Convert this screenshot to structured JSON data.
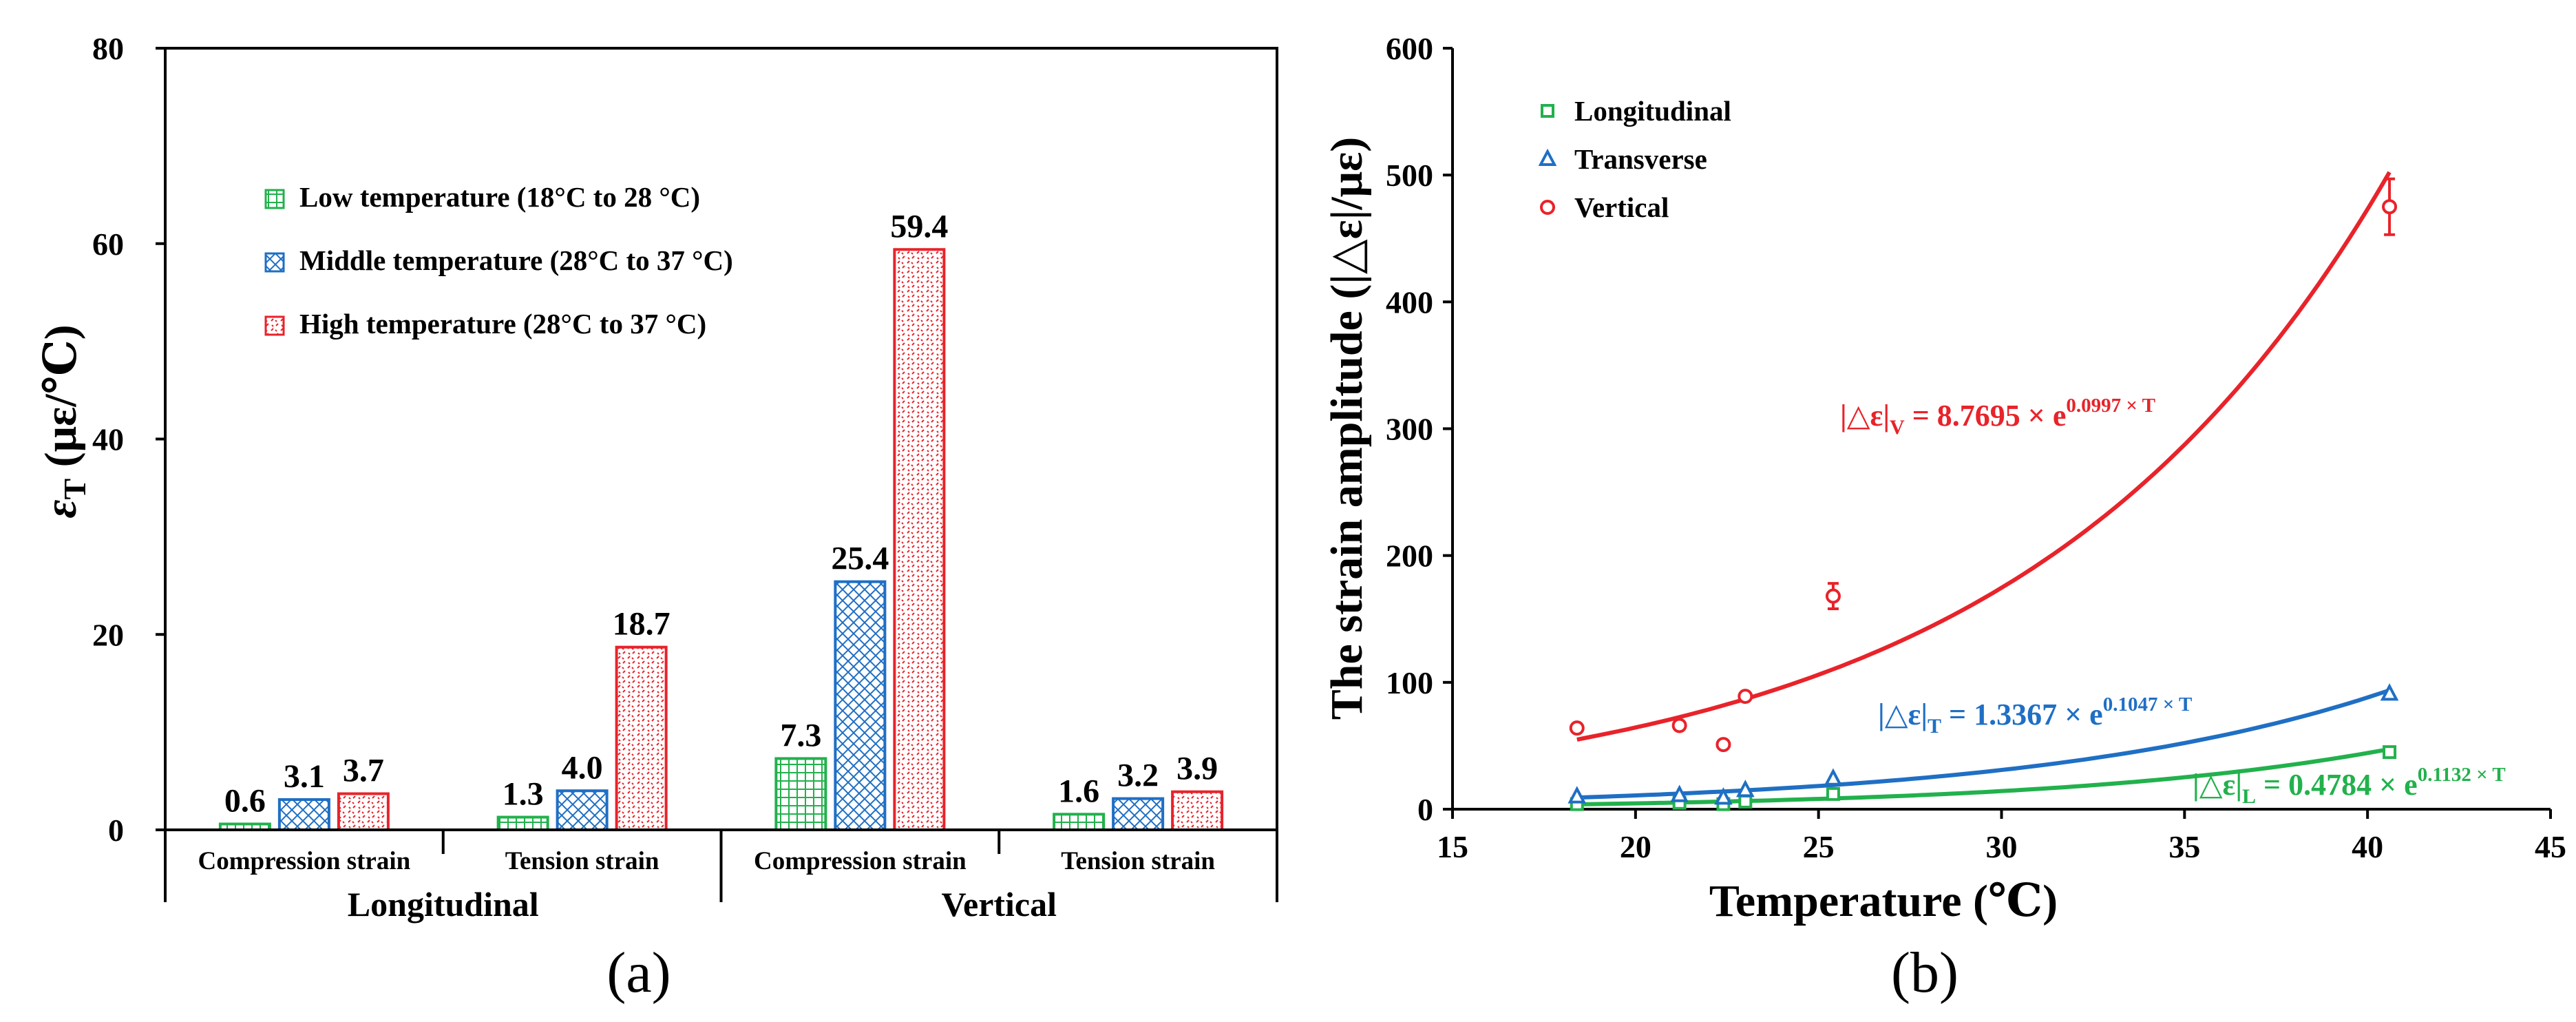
{
  "chart_data": [
    {
      "id": "a",
      "type": "bar",
      "caption": "(a)",
      "ylabel_symbol": "ε",
      "ylabel_sub": "T",
      "ylabel_unit": " (με/℃)",
      "ylim": [
        0,
        80
      ],
      "yticks": [
        0,
        20,
        40,
        60,
        80
      ],
      "groups": [
        {
          "label": "Longitudinal",
          "categories": [
            "Compression strain",
            "Tension strain"
          ]
        },
        {
          "label": "Vertical",
          "categories": [
            "Compression strain",
            "Tension strain"
          ]
        }
      ],
      "series": [
        {
          "name": "Low temperature (18°C to 28 °C)",
          "color": "#22b14c",
          "pattern": "grid",
          "values": [
            0.6,
            1.3,
            7.3,
            1.6
          ],
          "labels": [
            "0.6",
            "1.3",
            "7.3",
            "1.6"
          ]
        },
        {
          "name": "Middle temperature (28°C to 37 °C)",
          "color": "#1f6fc4",
          "pattern": "cross",
          "values": [
            3.1,
            4.0,
            25.4,
            3.2
          ],
          "labels": [
            "3.1",
            "4.0",
            "25.4",
            "3.2"
          ]
        },
        {
          "name": "High temperature (28°C to 37 °C)",
          "color": "#e8232a",
          "pattern": "dots",
          "values": [
            3.7,
            18.7,
            59.4,
            3.9
          ],
          "labels": [
            "3.7",
            "18.7",
            "59.4",
            "3.9"
          ]
        }
      ],
      "legend_position": "upper-left"
    },
    {
      "id": "b",
      "type": "scatter",
      "caption": "(b)",
      "xlabel": "Temperature (℃)",
      "ylabel": "The strain amplitude (|△ε|/με)",
      "xlim": [
        15,
        45
      ],
      "ylim": [
        0,
        600
      ],
      "xticks": [
        15,
        20,
        25,
        30,
        35,
        40,
        45
      ],
      "yticks": [
        0,
        100,
        200,
        300,
        400,
        500,
        600
      ],
      "legend_position": "upper-left",
      "series": [
        {
          "name": "Longitudinal",
          "marker": "square",
          "color": "#22b14c",
          "x": [
            18.4,
            21.2,
            22.4,
            23.0,
            25.4,
            40.6
          ],
          "y": [
            4,
            5,
            4,
            6,
            12,
            45
          ],
          "fit": {
            "a": 0.4784,
            "b": 0.1132,
            "x_range": [
              18.4,
              40.6
            ]
          },
          "equation": {
            "lhs": "|△ε|",
            "sub": "L",
            "rhs": " = 0.4784 × e",
            "sup": "0.1132 × T"
          }
        },
        {
          "name": "Transverse",
          "marker": "triangle",
          "color": "#1f6fc4",
          "x": [
            18.4,
            21.2,
            22.4,
            23.0,
            25.4,
            40.6
          ],
          "y": [
            10,
            11,
            9,
            15,
            24,
            91
          ],
          "fit": {
            "a": 1.3367,
            "b": 0.1047,
            "x_range": [
              18.4,
              40.6
            ]
          },
          "equation": {
            "lhs": "|△ε|",
            "sub": "T",
            "rhs": " = 1.3367 × e",
            "sup": "0.1047 × T"
          }
        },
        {
          "name": "Vertical",
          "marker": "circle",
          "color": "#e8232a",
          "x": [
            18.4,
            21.2,
            22.4,
            23.0,
            25.4,
            40.6
          ],
          "y": [
            64,
            66,
            51,
            89,
            168,
            475
          ],
          "err": [
            0,
            0,
            0,
            0,
            10,
            22
          ],
          "fit": {
            "a": 8.7695,
            "b": 0.0997,
            "x_range": [
              18.4,
              40.6
            ]
          },
          "equation": {
            "lhs": "|△ε|",
            "sub": "V",
            "rhs": " = 8.7695 × e",
            "sup": "0.0997 × T"
          }
        }
      ]
    }
  ]
}
